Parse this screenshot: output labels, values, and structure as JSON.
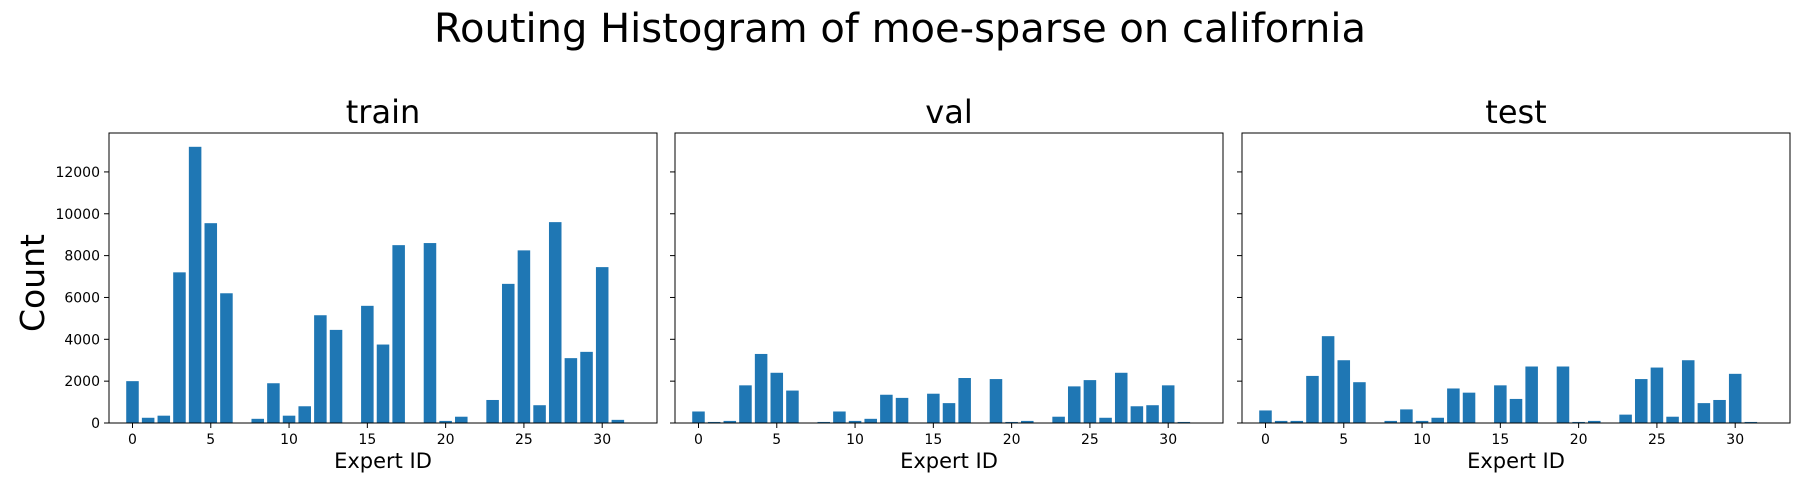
{
  "figure": {
    "title": "Routing Histogram of moe-sparse on california",
    "shared_ylabel": "Count",
    "bar_color": "#1f77b4"
  },
  "chart_data": [
    {
      "type": "bar",
      "title": "train",
      "xlabel": "Expert ID",
      "ylabel": "Count",
      "x": [
        0,
        1,
        2,
        3,
        4,
        5,
        6,
        7,
        8,
        9,
        10,
        11,
        12,
        13,
        14,
        15,
        16,
        17,
        18,
        19,
        20,
        21,
        22,
        23,
        24,
        25,
        26,
        27,
        28,
        29,
        30,
        31
      ],
      "values": [
        2000,
        250,
        350,
        7200,
        13200,
        9550,
        6200,
        0,
        200,
        1900,
        350,
        800,
        5150,
        4450,
        0,
        5600,
        3750,
        8500,
        0,
        8600,
        100,
        300,
        0,
        1100,
        6650,
        8250,
        850,
        9600,
        3100,
        3400,
        7450,
        150
      ],
      "xticks": [
        0,
        5,
        10,
        15,
        20,
        25,
        30
      ],
      "yticks": [
        0,
        2000,
        4000,
        6000,
        8000,
        10000,
        12000
      ],
      "xlim": [
        -1.5,
        33.5
      ],
      "ylim": [
        0,
        13860
      ]
    },
    {
      "type": "bar",
      "title": "val",
      "xlabel": "Expert ID",
      "x": [
        0,
        1,
        2,
        3,
        4,
        5,
        6,
        7,
        8,
        9,
        10,
        11,
        12,
        13,
        14,
        15,
        16,
        17,
        18,
        19,
        20,
        21,
        22,
        23,
        24,
        25,
        26,
        27,
        28,
        29,
        30,
        31
      ],
      "values": [
        550,
        50,
        100,
        1800,
        3300,
        2400,
        1550,
        0,
        50,
        550,
        100,
        200,
        1350,
        1200,
        0,
        1400,
        950,
        2150,
        0,
        2100,
        50,
        100,
        0,
        300,
        1750,
        2050,
        250,
        2400,
        800,
        850,
        1800,
        50
      ],
      "xticks": [
        0,
        5,
        10,
        15,
        20,
        25,
        30
      ],
      "xlim": [
        -1.5,
        33.5
      ],
      "ylim": [
        0,
        13860
      ]
    },
    {
      "type": "bar",
      "title": "test",
      "xlabel": "Expert ID",
      "x": [
        0,
        1,
        2,
        3,
        4,
        5,
        6,
        7,
        8,
        9,
        10,
        11,
        12,
        13,
        14,
        15,
        16,
        17,
        18,
        19,
        20,
        21,
        22,
        23,
        24,
        25,
        26,
        27,
        28,
        29,
        30,
        31
      ],
      "values": [
        600,
        100,
        100,
        2250,
        4150,
        3000,
        1950,
        0,
        100,
        650,
        100,
        250,
        1650,
        1450,
        0,
        1800,
        1150,
        2700,
        0,
        2700,
        50,
        100,
        0,
        400,
        2100,
        2650,
        300,
        3000,
        950,
        1100,
        2350,
        50
      ],
      "xticks": [
        0,
        5,
        10,
        15,
        20,
        25,
        30
      ],
      "xlim": [
        -1.5,
        33.5
      ],
      "ylim": [
        0,
        13860
      ]
    }
  ]
}
